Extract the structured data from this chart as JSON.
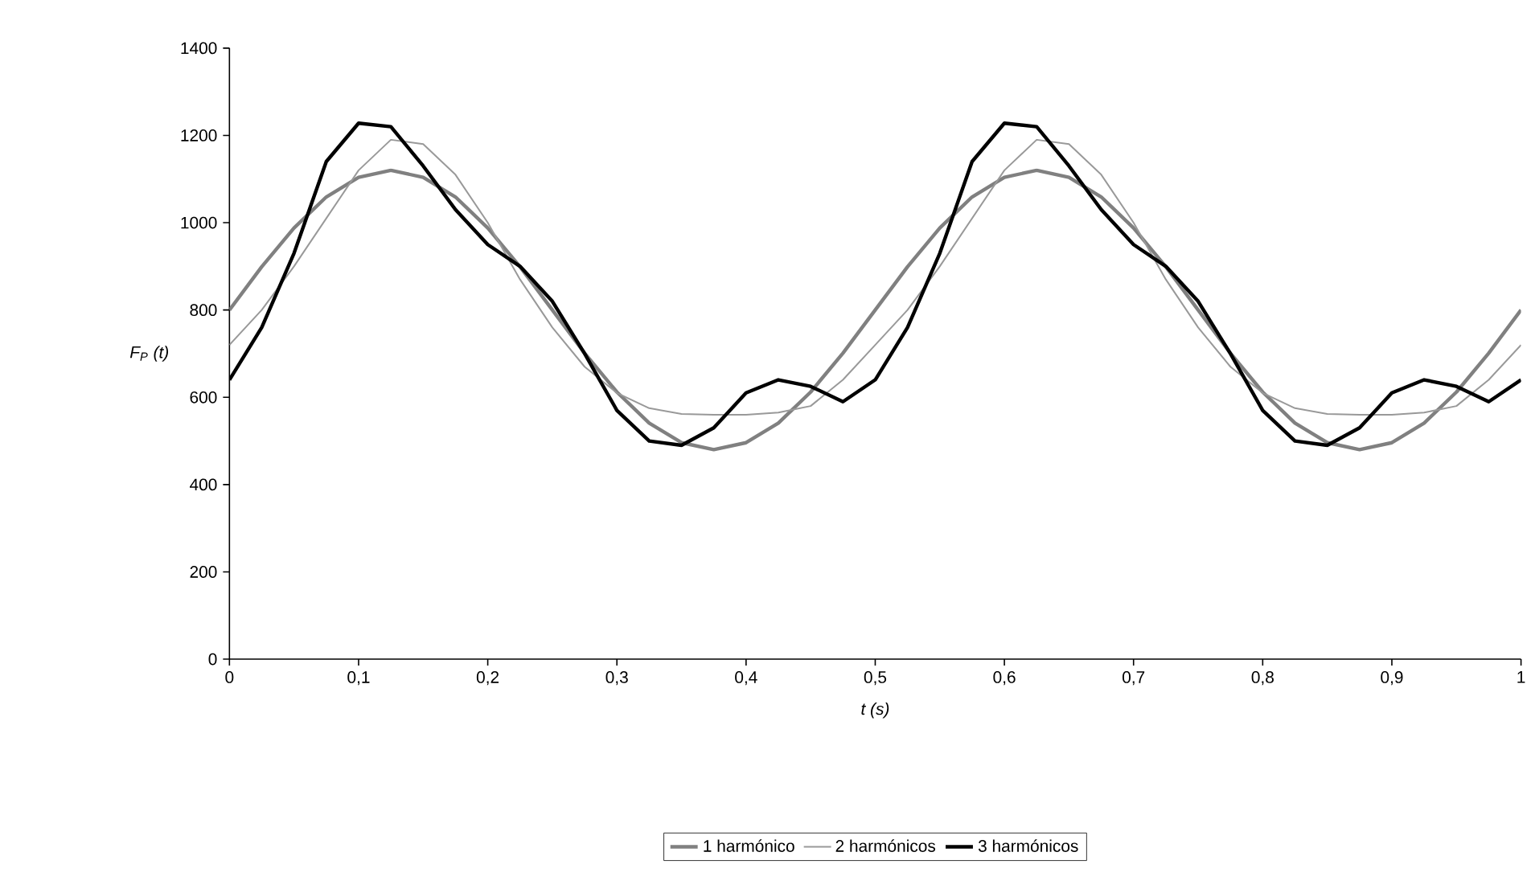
{
  "chart_data": {
    "type": "line",
    "xlabel": "t (s)",
    "ylabel": "F$_{P}$  (t)",
    "x": [
      0,
      0.025,
      0.05,
      0.075,
      0.1,
      0.125,
      0.15,
      0.175,
      0.2,
      0.225,
      0.25,
      0.275,
      0.3,
      0.325,
      0.35,
      0.375,
      0.4,
      0.425,
      0.45,
      0.475,
      0.5,
      0.525,
      0.55,
      0.575,
      0.6,
      0.625,
      0.65,
      0.675,
      0.7,
      0.725,
      0.75,
      0.775,
      0.8,
      0.825,
      0.85,
      0.875,
      0.9,
      0.925,
      0.95,
      0.975,
      1
    ],
    "series": [
      {
        "name": "1 harmónico",
        "color": "#808080",
        "values": [
          800,
          899,
          988,
          1059,
          1104,
          1120,
          1104,
          1059,
          988,
          899,
          800,
          701,
          612,
          541,
          496,
          480,
          496,
          541,
          612,
          701,
          800,
          899,
          988,
          1059,
          1104,
          1120,
          1104,
          1059,
          988,
          899,
          800,
          701,
          612,
          541,
          496,
          480,
          496,
          541,
          612,
          701,
          800
        ]
      },
      {
        "name": "2 harmónicos",
        "color": "#999999",
        "values": [
          720,
          800,
          900,
          1010,
          1120,
          1190,
          1180,
          1110,
          1000,
          870,
          760,
          670,
          610,
          575,
          562,
          560,
          560,
          565,
          580,
          640,
          720,
          800,
          900,
          1010,
          1120,
          1190,
          1180,
          1110,
          1000,
          870,
          760,
          670,
          610,
          575,
          562,
          560,
          560,
          565,
          580,
          640,
          720
        ]
      },
      {
        "name": "3 harmónicos",
        "color": "#000000",
        "values": [
          640,
          760,
          930,
          1140,
          1228,
          1220,
          1130,
          1030,
          950,
          900,
          820,
          700,
          570,
          500,
          490,
          530,
          610,
          640,
          625,
          590,
          640,
          760,
          930,
          1140,
          1228,
          1220,
          1130,
          1030,
          950,
          900,
          820,
          700,
          570,
          500,
          490,
          530,
          610,
          640,
          625,
          590,
          640
        ]
      }
    ],
    "xlim": [
      0,
      1
    ],
    "ylim": [
      0,
      1400
    ],
    "xticks": [
      0,
      {
        "value": 0.1,
        "label": "0,1"
      },
      {
        "value": 0.2,
        "label": "0,2"
      },
      {
        "value": 0.3,
        "label": "0,3"
      },
      {
        "value": 0.4,
        "label": "0,4"
      },
      {
        "value": 0.5,
        "label": "0,5"
      },
      {
        "value": 0.6,
        "label": "0,6"
      },
      {
        "value": 0.7,
        "label": "0,7"
      },
      {
        "value": 0.8,
        "label": "0,8"
      },
      {
        "value": 0.9,
        "label": "0,9"
      },
      1
    ],
    "yticks": [
      0,
      200,
      400,
      600,
      800,
      1000,
      1200,
      1400
    ],
    "grid": false,
    "legend": "bottom",
    "marker": "none",
    "line_style": "solid"
  }
}
